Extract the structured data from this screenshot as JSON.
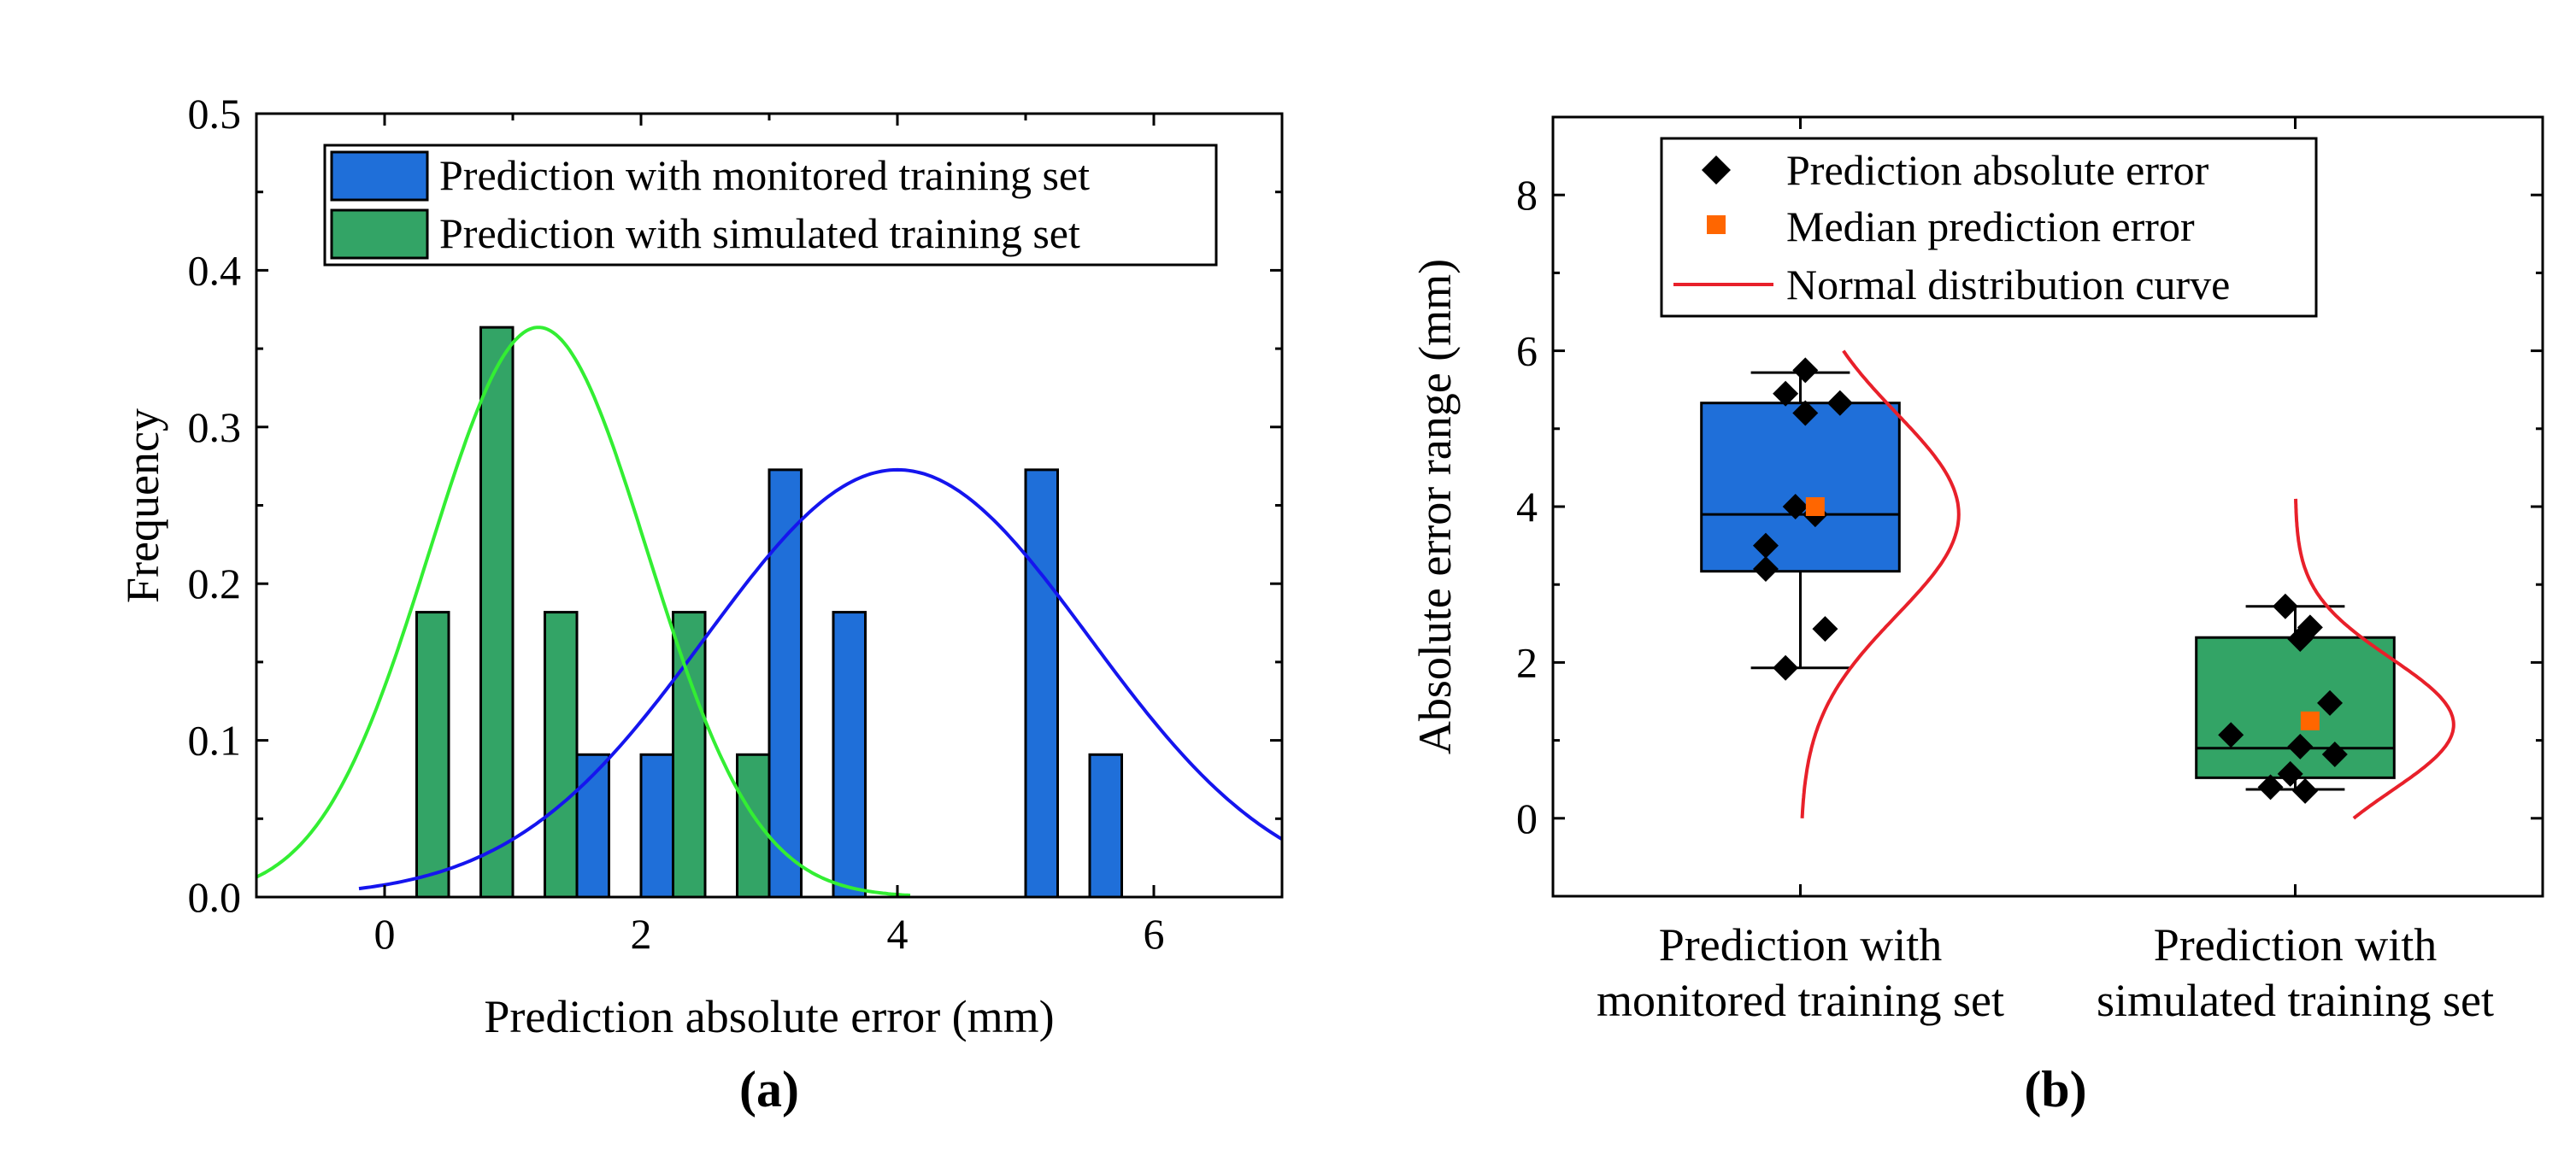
{
  "chart_data": [
    {
      "type": "bar",
      "panel_label": "(a)",
      "xlabel": "Prediction absolute error (mm)",
      "ylabel": "Frequency",
      "xlim": [
        -1,
        7
      ],
      "ylim": [
        0,
        0.5
      ],
      "xticks": [
        0,
        2,
        4,
        6
      ],
      "yticks": [
        0.0,
        0.1,
        0.2,
        0.3,
        0.4,
        0.5
      ],
      "ytick_labels": [
        "0.0",
        "0.1",
        "0.2",
        "0.3",
        "0.4",
        "0.5"
      ],
      "legend_position": "top-right",
      "bar_width": 0.25,
      "series": [
        {
          "name": "Prediction with monitored training set",
          "color": "#1f6fd9",
          "curve_color": "#1515ee",
          "bins": [
            1.625,
            2.125,
            3.125,
            3.625,
            5.125,
            5.625
          ],
          "values": [
            0.0909,
            0.0909,
            0.2727,
            0.1818,
            0.2727,
            0.0909
          ],
          "fit": {
            "mean": 4.0,
            "sd": 1.5,
            "peak": 0.2727,
            "range": [
              -0.2,
              7
            ]
          }
        },
        {
          "name": "Prediction with simulated training set",
          "color": "#33a466",
          "curve_color": "#33ee33",
          "bins": [
            0.375,
            0.875,
            1.375,
            2.375,
            2.875
          ],
          "values": [
            0.1818,
            0.3636,
            0.1818,
            0.1818,
            0.0909
          ],
          "fit": {
            "mean": 1.2,
            "sd": 0.85,
            "peak": 0.3636,
            "range": [
              -1,
              4.1
            ]
          }
        }
      ]
    },
    {
      "type": "box",
      "panel_label": "(b)",
      "ylabel": "Absolute error range (mm)",
      "ylim": [
        -1,
        9
      ],
      "yticks": [
        0,
        2,
        4,
        6,
        8
      ],
      "ytick_labels": [
        "0",
        "2",
        "4",
        "6",
        "8"
      ],
      "legend_position": "top",
      "legend": {
        "points": "Prediction absolute error",
        "median": "Median prediction error",
        "curve": "Normal distribution curve"
      },
      "colors": {
        "point": "#000000",
        "median": "#ff6600",
        "curve": "#e8202a"
      },
      "groups": [
        {
          "label_line1": "Prediction with",
          "label_line2": "monitored training set",
          "color": "#1f6fd9",
          "q1": 3.17,
          "median": 3.9,
          "q3": 5.33,
          "whisker_low": 1.93,
          "whisker_high": 5.72,
          "median_error": 4.0,
          "points": [
            {
              "dx": -0.03,
              "y": 5.45
            },
            {
              "dx": 0.01,
              "y": 5.75
            },
            {
              "dx": 0.08,
              "y": 5.33
            },
            {
              "dx": 0.01,
              "y": 5.2
            },
            {
              "dx": -0.01,
              "y": 4.0
            },
            {
              "dx": 0.03,
              "y": 3.9
            },
            {
              "dx": -0.07,
              "y": 3.5
            },
            {
              "dx": -0.07,
              "y": 3.2
            },
            {
              "dx": 0.05,
              "y": 2.43
            },
            {
              "dx": -0.03,
              "y": 1.93
            }
          ],
          "curve": {
            "mean": 3.9,
            "sd": 1.3,
            "range": [
              0,
              6.0
            ],
            "width": 0.32
          }
        },
        {
          "label_line1": "Prediction with",
          "label_line2": "simulated training set",
          "color": "#33a466",
          "q1": 0.52,
          "median": 0.9,
          "q3": 2.32,
          "whisker_low": 0.37,
          "whisker_high": 2.72,
          "median_error": 1.25,
          "points": [
            {
              "dx": -0.02,
              "y": 2.72
            },
            {
              "dx": 0.03,
              "y": 2.45
            },
            {
              "dx": 0.01,
              "y": 2.3
            },
            {
              "dx": 0.07,
              "y": 1.48
            },
            {
              "dx": -0.13,
              "y": 1.07
            },
            {
              "dx": 0.01,
              "y": 0.92
            },
            {
              "dx": 0.08,
              "y": 0.82
            },
            {
              "dx": -0.01,
              "y": 0.57
            },
            {
              "dx": -0.05,
              "y": 0.4
            },
            {
              "dx": 0.02,
              "y": 0.35
            }
          ],
          "curve": {
            "mean": 1.2,
            "sd": 0.85,
            "range": [
              0,
              4.1
            ],
            "width": 0.32
          }
        }
      ]
    }
  ]
}
